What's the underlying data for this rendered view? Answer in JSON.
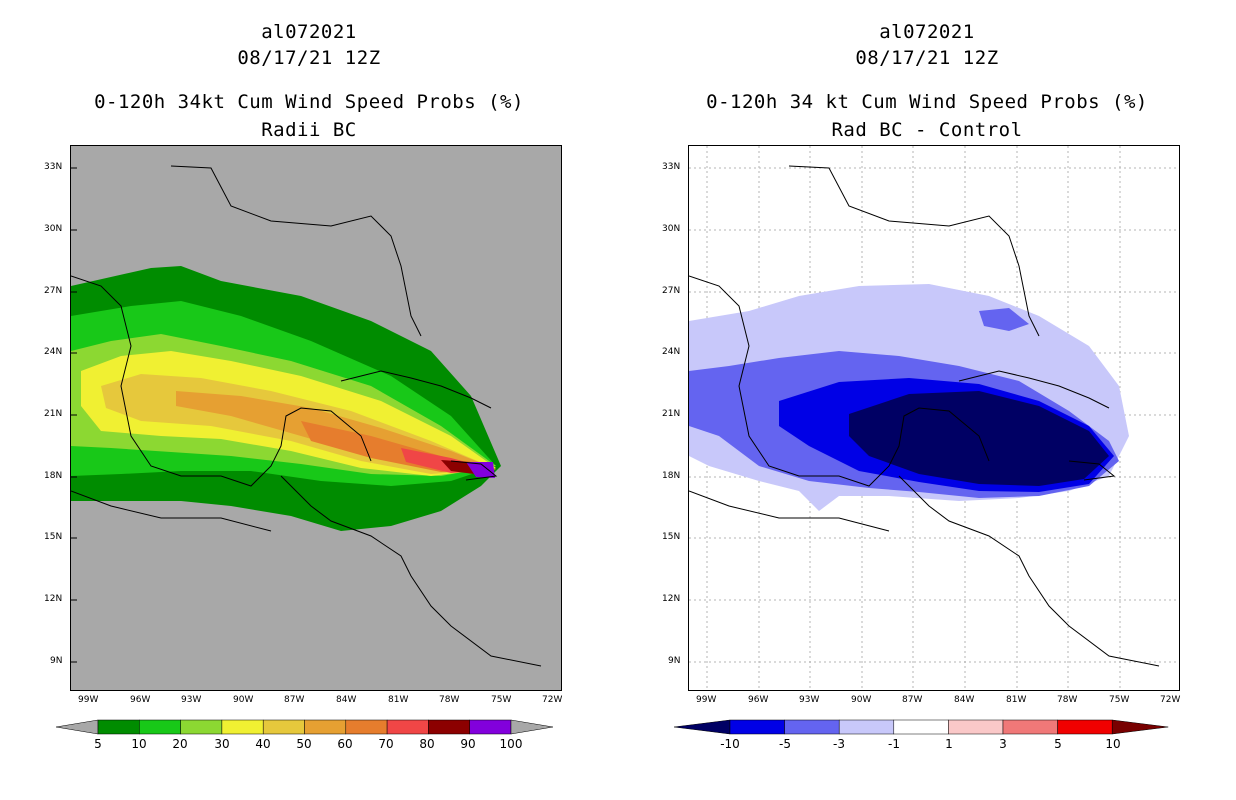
{
  "left": {
    "storm_id": "al072021",
    "date": "08/17/21 12Z",
    "title": "0-120h 34kt Cum Wind Speed Probs (%)",
    "subtitle": "Radii BC",
    "colorbar": {
      "labels": [
        "5",
        "10",
        "20",
        "30",
        "40",
        "50",
        "60",
        "70",
        "80",
        "90",
        "100"
      ],
      "colors": [
        "#008c00",
        "#18c818",
        "#8cd832",
        "#f0f032",
        "#e6c83c",
        "#e6a032",
        "#e67d2d",
        "#f04646",
        "#8c0000",
        "#8200dc"
      ]
    },
    "background_color": "#a8a8a8"
  },
  "right": {
    "storm_id": "al072021",
    "date": "08/17/21 12Z",
    "title": "0-120h 34 kt Cum Wind Speed Probs (%)",
    "subtitle": "Rad BC - Control",
    "colorbar": {
      "labels": [
        "-10",
        "-5",
        "-3",
        "-1",
        "1",
        "3",
        "5",
        "10"
      ],
      "colors": [
        "#000064",
        "#0000e6",
        "#6464f0",
        "#c8c8fa",
        "#ffffff",
        "#fac8c8",
        "#f07878",
        "#f00000",
        "#780000"
      ]
    }
  },
  "axes": {
    "lat_labels": [
      "33N",
      "30N",
      "27N",
      "24N",
      "21N",
      "18N",
      "15N",
      "12N",
      "9N"
    ],
    "lon_labels": [
      "99W",
      "96W",
      "93W",
      "90W",
      "87W",
      "84W",
      "81W",
      "78W",
      "75W",
      "72W"
    ]
  }
}
